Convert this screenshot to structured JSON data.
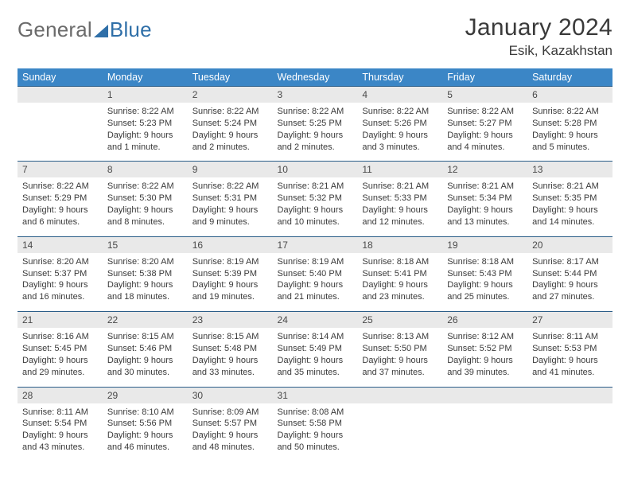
{
  "logo": {
    "left": "General",
    "right": "Blue"
  },
  "title": "January 2024",
  "location": "Esik, Kazakhstan",
  "colors": {
    "header_bg": "#3b86c6",
    "header_text": "#ffffff",
    "daynum_bg": "#e9e9e9",
    "row_border": "#2a5d88",
    "logo_gray": "#6b6b6b",
    "logo_blue": "#2f6fa8",
    "text": "#3a3a3a"
  },
  "typography": {
    "title_fontsize": 30,
    "location_fontsize": 17,
    "dayhead_fontsize": 12.5,
    "body_fontsize": 11
  },
  "day_headers": [
    "Sunday",
    "Monday",
    "Tuesday",
    "Wednesday",
    "Thursday",
    "Friday",
    "Saturday"
  ],
  "weeks": [
    {
      "nums": [
        "",
        "1",
        "2",
        "3",
        "4",
        "5",
        "6"
      ],
      "cells": [
        [
          "",
          "",
          "",
          ""
        ],
        [
          "Sunrise: 8:22 AM",
          "Sunset: 5:23 PM",
          "Daylight: 9 hours",
          "and 1 minute."
        ],
        [
          "Sunrise: 8:22 AM",
          "Sunset: 5:24 PM",
          "Daylight: 9 hours",
          "and 2 minutes."
        ],
        [
          "Sunrise: 8:22 AM",
          "Sunset: 5:25 PM",
          "Daylight: 9 hours",
          "and 2 minutes."
        ],
        [
          "Sunrise: 8:22 AM",
          "Sunset: 5:26 PM",
          "Daylight: 9 hours",
          "and 3 minutes."
        ],
        [
          "Sunrise: 8:22 AM",
          "Sunset: 5:27 PM",
          "Daylight: 9 hours",
          "and 4 minutes."
        ],
        [
          "Sunrise: 8:22 AM",
          "Sunset: 5:28 PM",
          "Daylight: 9 hours",
          "and 5 minutes."
        ]
      ]
    },
    {
      "nums": [
        "7",
        "8",
        "9",
        "10",
        "11",
        "12",
        "13"
      ],
      "cells": [
        [
          "Sunrise: 8:22 AM",
          "Sunset: 5:29 PM",
          "Daylight: 9 hours",
          "and 6 minutes."
        ],
        [
          "Sunrise: 8:22 AM",
          "Sunset: 5:30 PM",
          "Daylight: 9 hours",
          "and 8 minutes."
        ],
        [
          "Sunrise: 8:22 AM",
          "Sunset: 5:31 PM",
          "Daylight: 9 hours",
          "and 9 minutes."
        ],
        [
          "Sunrise: 8:21 AM",
          "Sunset: 5:32 PM",
          "Daylight: 9 hours",
          "and 10 minutes."
        ],
        [
          "Sunrise: 8:21 AM",
          "Sunset: 5:33 PM",
          "Daylight: 9 hours",
          "and 12 minutes."
        ],
        [
          "Sunrise: 8:21 AM",
          "Sunset: 5:34 PM",
          "Daylight: 9 hours",
          "and 13 minutes."
        ],
        [
          "Sunrise: 8:21 AM",
          "Sunset: 5:35 PM",
          "Daylight: 9 hours",
          "and 14 minutes."
        ]
      ]
    },
    {
      "nums": [
        "14",
        "15",
        "16",
        "17",
        "18",
        "19",
        "20"
      ],
      "cells": [
        [
          "Sunrise: 8:20 AM",
          "Sunset: 5:37 PM",
          "Daylight: 9 hours",
          "and 16 minutes."
        ],
        [
          "Sunrise: 8:20 AM",
          "Sunset: 5:38 PM",
          "Daylight: 9 hours",
          "and 18 minutes."
        ],
        [
          "Sunrise: 8:19 AM",
          "Sunset: 5:39 PM",
          "Daylight: 9 hours",
          "and 19 minutes."
        ],
        [
          "Sunrise: 8:19 AM",
          "Sunset: 5:40 PM",
          "Daylight: 9 hours",
          "and 21 minutes."
        ],
        [
          "Sunrise: 8:18 AM",
          "Sunset: 5:41 PM",
          "Daylight: 9 hours",
          "and 23 minutes."
        ],
        [
          "Sunrise: 8:18 AM",
          "Sunset: 5:43 PM",
          "Daylight: 9 hours",
          "and 25 minutes."
        ],
        [
          "Sunrise: 8:17 AM",
          "Sunset: 5:44 PM",
          "Daylight: 9 hours",
          "and 27 minutes."
        ]
      ]
    },
    {
      "nums": [
        "21",
        "22",
        "23",
        "24",
        "25",
        "26",
        "27"
      ],
      "cells": [
        [
          "Sunrise: 8:16 AM",
          "Sunset: 5:45 PM",
          "Daylight: 9 hours",
          "and 29 minutes."
        ],
        [
          "Sunrise: 8:15 AM",
          "Sunset: 5:46 PM",
          "Daylight: 9 hours",
          "and 30 minutes."
        ],
        [
          "Sunrise: 8:15 AM",
          "Sunset: 5:48 PM",
          "Daylight: 9 hours",
          "and 33 minutes."
        ],
        [
          "Sunrise: 8:14 AM",
          "Sunset: 5:49 PM",
          "Daylight: 9 hours",
          "and 35 minutes."
        ],
        [
          "Sunrise: 8:13 AM",
          "Sunset: 5:50 PM",
          "Daylight: 9 hours",
          "and 37 minutes."
        ],
        [
          "Sunrise: 8:12 AM",
          "Sunset: 5:52 PM",
          "Daylight: 9 hours",
          "and 39 minutes."
        ],
        [
          "Sunrise: 8:11 AM",
          "Sunset: 5:53 PM",
          "Daylight: 9 hours",
          "and 41 minutes."
        ]
      ]
    },
    {
      "nums": [
        "28",
        "29",
        "30",
        "31",
        "",
        "",
        ""
      ],
      "cells": [
        [
          "Sunrise: 8:11 AM",
          "Sunset: 5:54 PM",
          "Daylight: 9 hours",
          "and 43 minutes."
        ],
        [
          "Sunrise: 8:10 AM",
          "Sunset: 5:56 PM",
          "Daylight: 9 hours",
          "and 46 minutes."
        ],
        [
          "Sunrise: 8:09 AM",
          "Sunset: 5:57 PM",
          "Daylight: 9 hours",
          "and 48 minutes."
        ],
        [
          "Sunrise: 8:08 AM",
          "Sunset: 5:58 PM",
          "Daylight: 9 hours",
          "and 50 minutes."
        ],
        [
          "",
          "",
          "",
          ""
        ],
        [
          "",
          "",
          "",
          ""
        ],
        [
          "",
          "",
          "",
          ""
        ]
      ]
    }
  ]
}
